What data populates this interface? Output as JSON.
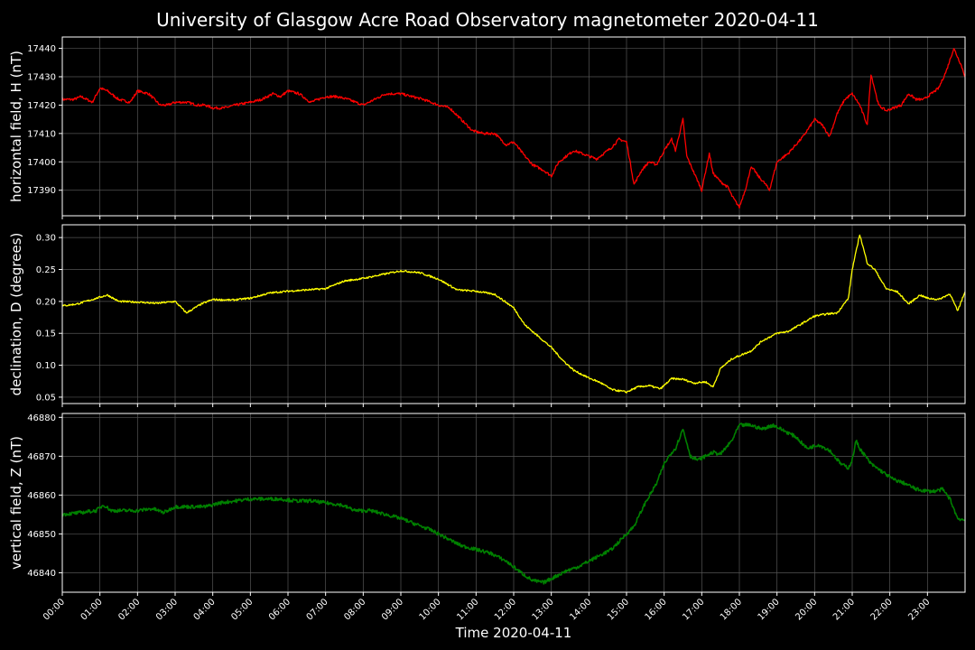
{
  "chart_data": {
    "type": "line",
    "title": "University of Glasgow Acre Road Observatory magnetometer 2020-04-11",
    "xlabel": "Time 2020-04-11",
    "x_ticks": [
      "00:00",
      "01:00",
      "02:00",
      "03:00",
      "04:00",
      "05:00",
      "06:00",
      "07:00",
      "08:00",
      "09:00",
      "10:00",
      "11:00",
      "12:00",
      "13:00",
      "14:00",
      "15:00",
      "16:00",
      "17:00",
      "18:00",
      "19:00",
      "20:00",
      "21:00",
      "22:00",
      "23:00"
    ],
    "xlim_hours": [
      0,
      24
    ],
    "grid": true,
    "background": "#000000",
    "panels": [
      {
        "ylabel": "horizontal field, H (nT)",
        "color": "#ff0000",
        "ylim": [
          17381,
          17444
        ],
        "y_ticks": [
          17390,
          17400,
          17410,
          17420,
          17430,
          17440
        ],
        "series": {
          "hours": [
            0,
            0.3,
            0.5,
            0.8,
            1.0,
            1.2,
            1.5,
            1.8,
            2.0,
            2.3,
            2.6,
            2.8,
            3.0,
            3.3,
            3.6,
            3.8,
            4.0,
            4.3,
            4.6,
            5.0,
            5.3,
            5.6,
            5.8,
            6.0,
            6.3,
            6.6,
            7.0,
            7.3,
            7.6,
            8.0,
            8.3,
            8.6,
            9.0,
            9.3,
            9.6,
            9.8,
            10.0,
            10.3,
            10.6,
            10.9,
            11.2,
            11.5,
            11.8,
            12.0,
            12.3,
            12.5,
            12.8,
            13.0,
            13.2,
            13.4,
            13.6,
            13.8,
            14.0,
            14.2,
            14.4,
            14.6,
            14.8,
            15.0,
            15.2,
            15.4,
            15.6,
            15.8,
            16.0,
            16.2,
            16.3,
            16.5,
            16.6,
            16.8,
            17.0,
            17.2,
            17.3,
            17.5,
            17.7,
            17.8,
            17.9,
            18.0,
            18.2,
            18.3,
            18.4,
            18.5,
            18.7,
            18.8,
            19.0,
            19.3,
            19.5,
            19.7,
            19.9,
            20.0,
            20.2,
            20.4,
            20.6,
            20.8,
            21.0,
            21.2,
            21.4,
            21.5,
            21.7,
            21.9,
            22.1,
            22.3,
            22.5,
            22.7,
            22.9,
            23.1,
            23.3,
            23.5,
            23.7,
            23.9,
            24.0
          ],
          "values": [
            17422,
            17422,
            17423,
            17421,
            17426,
            17425,
            17422,
            17421,
            17425,
            17424,
            17420,
            17420,
            17421,
            17421,
            17420,
            17420,
            17419,
            17419,
            17420,
            17421,
            17422,
            17424,
            17423,
            17425,
            17424,
            17421,
            17423,
            17423,
            17422,
            17420,
            17422,
            17424,
            17424,
            17423,
            17422,
            17421,
            17420,
            17419,
            17415,
            17411,
            17410,
            17410,
            17406,
            17407,
            17402,
            17399,
            17397,
            17395,
            17400,
            17402,
            17404,
            17403,
            17402,
            17401,
            17403,
            17405,
            17408,
            17407,
            17392,
            17397,
            17400,
            17399,
            17404,
            17408,
            17404,
            17415,
            17402,
            17396,
            17390,
            17403,
            17396,
            17393,
            17391,
            17388,
            17386,
            17384,
            17392,
            17398,
            17397,
            17395,
            17392,
            17390,
            17400,
            17403,
            17406,
            17409,
            17413,
            17415,
            17413,
            17409,
            17417,
            17422,
            17424,
            17420,
            17413,
            17431,
            17420,
            17418,
            17419,
            17420,
            17424,
            17422,
            17422,
            17424,
            17426,
            17432,
            17440,
            17434,
            17430
          ]
        }
      },
      {
        "ylabel": "declination, D (degrees)",
        "color": "#ffff00",
        "ylim": [
          0.04,
          0.32
        ],
        "y_ticks": [
          "0.05",
          "0.10",
          "0.15",
          "0.20",
          "0.25",
          "0.30"
        ],
        "series": {
          "hours": [
            0,
            0.4,
            0.8,
            1.2,
            1.5,
            2.0,
            2.5,
            3.0,
            3.3,
            3.7,
            4.0,
            4.5,
            5.0,
            5.5,
            6.0,
            6.5,
            7.0,
            7.5,
            8.0,
            8.5,
            9.0,
            9.5,
            10.0,
            10.5,
            11.0,
            11.5,
            12.0,
            12.3,
            12.6,
            13.0,
            13.3,
            13.6,
            14.0,
            14.3,
            14.6,
            15.0,
            15.3,
            15.6,
            15.9,
            16.2,
            16.5,
            16.8,
            17.1,
            17.3,
            17.5,
            17.8,
            18.0,
            18.3,
            18.6,
            19.0,
            19.3,
            19.6,
            20.0,
            20.3,
            20.6,
            20.9,
            21.0,
            21.2,
            21.4,
            21.6,
            21.9,
            22.2,
            22.5,
            22.8,
            23.0,
            23.3,
            23.6,
            23.8,
            24.0
          ],
          "values": [
            0.193,
            0.196,
            0.203,
            0.21,
            0.2,
            0.199,
            0.197,
            0.2,
            0.182,
            0.196,
            0.203,
            0.202,
            0.205,
            0.213,
            0.216,
            0.218,
            0.22,
            0.232,
            0.236,
            0.242,
            0.248,
            0.245,
            0.235,
            0.218,
            0.216,
            0.211,
            0.19,
            0.163,
            0.148,
            0.128,
            0.108,
            0.092,
            0.08,
            0.073,
            0.062,
            0.058,
            0.066,
            0.068,
            0.063,
            0.079,
            0.078,
            0.072,
            0.074,
            0.066,
            0.095,
            0.11,
            0.115,
            0.122,
            0.138,
            0.15,
            0.153,
            0.163,
            0.177,
            0.18,
            0.182,
            0.205,
            0.25,
            0.305,
            0.26,
            0.25,
            0.22,
            0.215,
            0.196,
            0.21,
            0.205,
            0.203,
            0.212,
            0.185,
            0.215
          ]
        }
      },
      {
        "ylabel": "vertical field, Z (nT)",
        "color": "#008000",
        "ylim": [
          46835,
          46881
        ],
        "y_ticks": [
          46840,
          46850,
          46860,
          46870,
          46880
        ],
        "series": {
          "hours": [
            0,
            0.5,
            0.9,
            1.1,
            1.3,
            1.7,
            2.0,
            2.4,
            2.7,
            3.0,
            3.4,
            3.8,
            4.2,
            4.6,
            5.0,
            5.4,
            5.8,
            6.2,
            6.6,
            7.0,
            7.4,
            7.8,
            8.2,
            8.6,
            9.0,
            9.4,
            9.8,
            10.2,
            10.6,
            11.0,
            11.4,
            11.8,
            12.2,
            12.5,
            12.8,
            13.1,
            13.4,
            13.7,
            14.0,
            14.3,
            14.6,
            14.9,
            15.2,
            15.5,
            15.8,
            16.0,
            16.2,
            16.3,
            16.5,
            16.7,
            16.9,
            17.1,
            17.3,
            17.5,
            17.8,
            18.0,
            18.3,
            18.6,
            18.9,
            19.2,
            19.5,
            19.8,
            20.1,
            20.4,
            20.7,
            20.9,
            21.0,
            21.1,
            21.2,
            21.5,
            21.8,
            22.1,
            22.4,
            22.7,
            23.0,
            23.2,
            23.4,
            23.6,
            23.8,
            24.0
          ],
          "values": [
            46855,
            46855.5,
            46856,
            46857.5,
            46856,
            46856,
            46856,
            46856.5,
            46855.5,
            46857,
            46857,
            46857,
            46858,
            46858.5,
            46859,
            46859,
            46859,
            46858.5,
            46858.5,
            46858,
            46857.5,
            46856,
            46856,
            46855,
            46854,
            46852.5,
            46851,
            46849,
            46847,
            46846,
            46845,
            46843,
            46840,
            46838,
            46837.5,
            46839,
            46840.5,
            46841.5,
            46843,
            46844.5,
            46846,
            46849,
            46852,
            46858,
            46863,
            46868,
            46871,
            46872,
            46877,
            46870,
            46869,
            46870,
            46871,
            46870.5,
            46874,
            46878,
            46878,
            46877,
            46878,
            46876.5,
            46875,
            46872,
            46873,
            46871.5,
            46868,
            46867,
            46869,
            46874,
            46872,
            46868,
            46866,
            46864,
            46863,
            46861.5,
            46861,
            46861,
            46861.5,
            46859,
            46854,
            46853.5
          ]
        }
      }
    ]
  }
}
